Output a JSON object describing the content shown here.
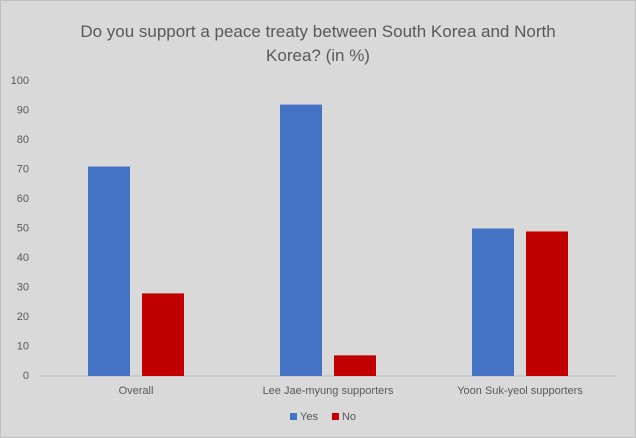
{
  "chart_data": {
    "type": "bar",
    "title": "Do you support a peace treaty between South Korea and North Korea? (in %)",
    "categories": [
      "Overall",
      "Lee Jae-myung supporters",
      "Yoon Suk-yeol supporters"
    ],
    "series": [
      {
        "name": "Yes",
        "color": "#4472c4",
        "values": [
          71,
          92,
          50
        ]
      },
      {
        "name": "No",
        "color": "#c00000",
        "values": [
          28,
          7,
          49
        ]
      }
    ],
    "ylim": [
      0,
      100
    ],
    "yticks": [
      0,
      10,
      20,
      30,
      40,
      50,
      60,
      70,
      80,
      90,
      100
    ],
    "grid": false,
    "legend": "bottom"
  }
}
